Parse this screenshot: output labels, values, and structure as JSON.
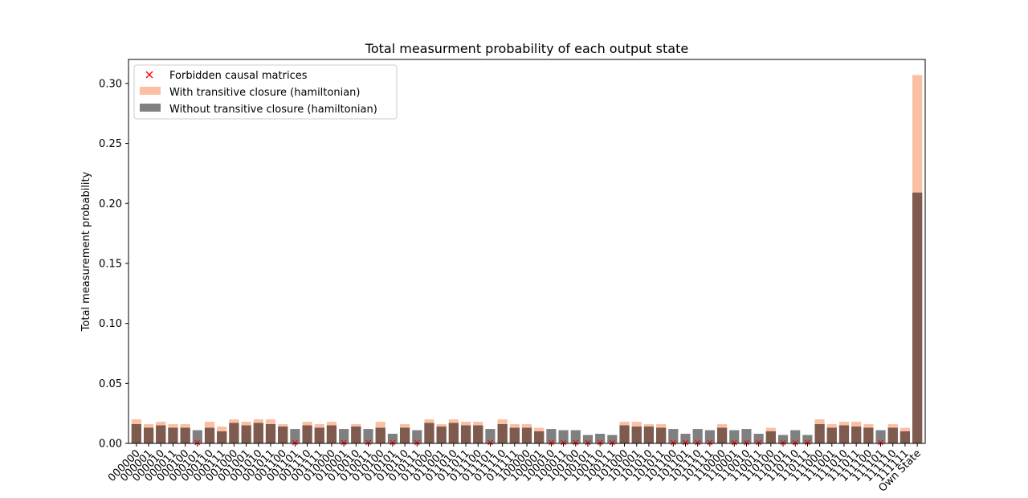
{
  "chart_data": {
    "type": "bar",
    "title": "Total measurment probability of each output state",
    "xlabel": "",
    "ylabel": "Total measurement probability",
    "ylim": [
      0,
      0.32
    ],
    "yticks": [
      0.0,
      0.05,
      0.1,
      0.15,
      0.2,
      0.25,
      0.3
    ],
    "ytick_labels": [
      "0.00",
      "0.05",
      "0.10",
      "0.15",
      "0.20",
      "0.25",
      "0.30"
    ],
    "grid": false,
    "legend_position": "top-left",
    "categories": [
      "000000",
      "000001",
      "000010",
      "000011",
      "000100",
      "000101",
      "000110",
      "000111",
      "001000",
      "001001",
      "001010",
      "001011",
      "001100",
      "001101",
      "001110",
      "001111",
      "010000",
      "010001",
      "010010",
      "010011",
      "010100",
      "010101",
      "010110",
      "010111",
      "011000",
      "011001",
      "011010",
      "011011",
      "011100",
      "011101",
      "011110",
      "011111",
      "100000",
      "100001",
      "100010",
      "100011",
      "100100",
      "100101",
      "100110",
      "100111",
      "101000",
      "101001",
      "101010",
      "101011",
      "101100",
      "101101",
      "101110",
      "101111",
      "110000",
      "110001",
      "110010",
      "110011",
      "110100",
      "110101",
      "110110",
      "110111",
      "111000",
      "111001",
      "111010",
      "111011",
      "111100",
      "111101",
      "111110",
      "111111",
      "Own State"
    ],
    "series": [
      {
        "name": "With transitive closure (hamiltonian)",
        "color": "#fbbfa4",
        "values": [
          0.02,
          0.016,
          0.018,
          0.016,
          0.016,
          0.0,
          0.018,
          0.014,
          0.02,
          0.018,
          0.02,
          0.02,
          0.016,
          0.0,
          0.018,
          0.016,
          0.018,
          0.0,
          0.016,
          0.0,
          0.018,
          0.0,
          0.016,
          0.0,
          0.02,
          0.016,
          0.02,
          0.018,
          0.018,
          0.0,
          0.02,
          0.016,
          0.016,
          0.013,
          0.0,
          0.0,
          0.0,
          0.0,
          0.0,
          0.0,
          0.018,
          0.018,
          0.016,
          0.016,
          0.0,
          0.0,
          0.0,
          0.0,
          0.016,
          0.0,
          0.0,
          0.0,
          0.013,
          0.0,
          0.0,
          0.0,
          0.02,
          0.016,
          0.018,
          0.018,
          0.016,
          0.0,
          0.016,
          0.013,
          0.307
        ]
      },
      {
        "name": "Without transitive closure (hamiltonian)",
        "color": "#808080",
        "values": [
          0.016,
          0.013,
          0.015,
          0.013,
          0.013,
          0.011,
          0.013,
          0.01,
          0.017,
          0.015,
          0.017,
          0.016,
          0.014,
          0.012,
          0.015,
          0.013,
          0.015,
          0.012,
          0.014,
          0.012,
          0.013,
          0.008,
          0.013,
          0.011,
          0.017,
          0.014,
          0.017,
          0.015,
          0.015,
          0.012,
          0.016,
          0.013,
          0.013,
          0.01,
          0.012,
          0.011,
          0.011,
          0.007,
          0.008,
          0.007,
          0.015,
          0.014,
          0.014,
          0.013,
          0.012,
          0.008,
          0.012,
          0.011,
          0.013,
          0.011,
          0.012,
          0.008,
          0.01,
          0.007,
          0.011,
          0.007,
          0.016,
          0.013,
          0.015,
          0.014,
          0.013,
          0.011,
          0.013,
          0.01,
          0.209
        ]
      }
    ],
    "forbidden": {
      "name": "Forbidden causal matrices",
      "marker": "x",
      "color": "#ff0000",
      "indices": [
        5,
        13,
        17,
        19,
        21,
        23,
        29,
        34,
        35,
        36,
        37,
        38,
        39,
        44,
        45,
        46,
        47,
        49,
        50,
        51,
        53,
        54,
        55,
        61
      ]
    },
    "overlap_color": "#7e5a4f"
  }
}
